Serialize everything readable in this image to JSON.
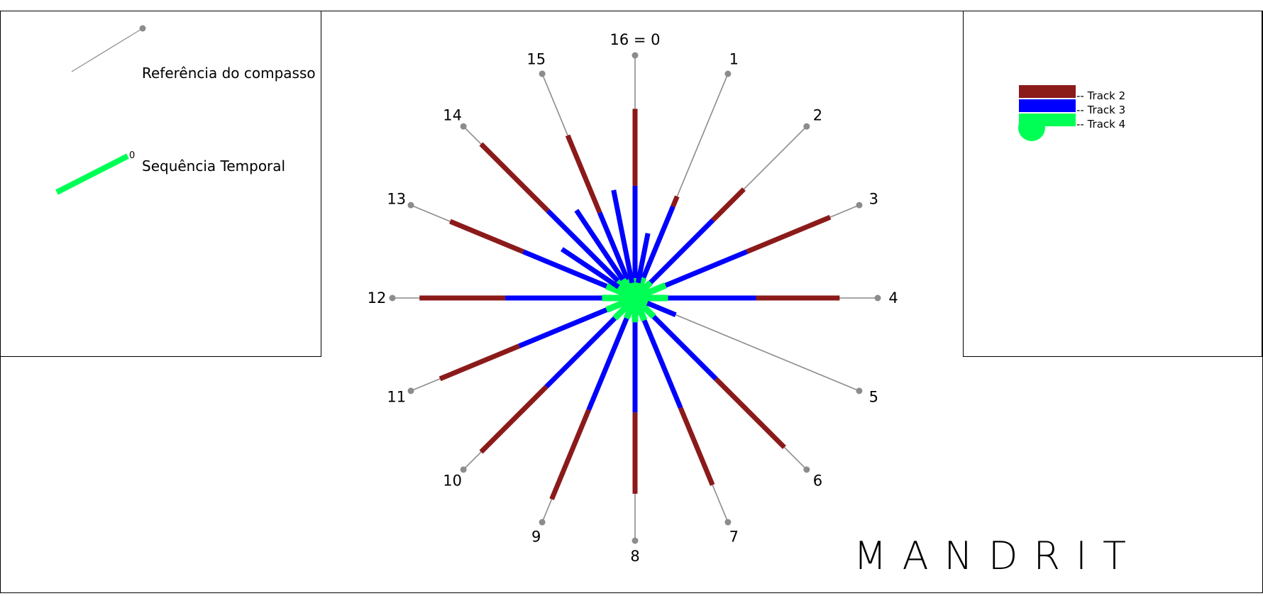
{
  "legend_left": {
    "compass_reference_label": "Referência do compasso",
    "temporal_sequence_label": "Sequência Temporal",
    "temporal_sequence_marker": "0"
  },
  "legend_right": {
    "tracks": [
      {
        "label": "-- Track 2",
        "color": "#8b1a1a"
      },
      {
        "label": "-- Track 3",
        "color": "#0000ff"
      },
      {
        "label": "-- Track 4",
        "color": "#00ff55"
      }
    ]
  },
  "compass": {
    "reference_color": "#8c8c8c",
    "directions": [
      "16 = 0",
      "1",
      "2",
      "3",
      "4",
      "5",
      "6",
      "7",
      "8",
      "9",
      "10",
      "11",
      "12",
      "13",
      "14",
      "15"
    ]
  },
  "rays": {
    "track2_color": "#8b1a1a",
    "track3_color": "#0000ff",
    "track4_color": "#00ff55",
    "items": [
      {
        "direction": 0,
        "track4": 0.09,
        "track3": 0.51,
        "track2": 0.86
      },
      {
        "direction": 15,
        "track4": 0.09,
        "track3": 0.42,
        "track2": 0.8
      },
      {
        "direction": 14,
        "track4": 0.11,
        "track3": 0.56,
        "track2": 0.99
      },
      {
        "direction": 13,
        "track4": 0.14,
        "track3": 0.55,
        "track2": 0.91
      },
      {
        "direction": 12,
        "track4": 0.15,
        "track3": 0.59,
        "track2": 0.98
      },
      {
        "direction": 11,
        "track4": 0.14,
        "track3": 0.57,
        "track2": 0.96
      },
      {
        "direction": 10,
        "track4": 0.13,
        "track3": 0.57,
        "track2": 0.99
      },
      {
        "direction": 9,
        "track4": 0.1,
        "track3": 0.55,
        "track2": 0.99
      },
      {
        "direction": 8,
        "track4": 0.11,
        "track3": 0.52,
        "track2": 0.89
      },
      {
        "direction": 7,
        "track4": 0.11,
        "track3": 0.54,
        "track2": 0.92
      },
      {
        "direction": 6,
        "track4": 0.12,
        "track3": 0.52,
        "track2": 0.96
      },
      {
        "direction": 4,
        "track4": 0.15,
        "track3": 0.55,
        "track2": 0.93
      },
      {
        "direction": 3,
        "track4": 0.15,
        "track3": 0.55,
        "track2": 0.96
      },
      {
        "direction": 2,
        "track4": 0.1,
        "track3": 0.5,
        "track2": 0.7
      },
      {
        "direction": 1,
        "track4": 0.1,
        "track3": 0.45,
        "track2": 0.5
      },
      {
        "direction": 0.5,
        "track4": 0.07,
        "track3": 0.3,
        "track2": 0.3
      },
      {
        "direction": 15.5,
        "track4": 0.07,
        "track3": 0.5,
        "track2": 0.5
      },
      {
        "direction": 13.5,
        "track4": 0.09,
        "track3": 0.4,
        "track2": 0.4
      },
      {
        "direction": 14.5,
        "track4": 0.1,
        "track3": 0.48,
        "track2": 0.48
      },
      {
        "direction": 5,
        "track4": 0.06,
        "track3": 0.2,
        "track2": 0.2
      }
    ]
  },
  "brand": "MANDRIT"
}
